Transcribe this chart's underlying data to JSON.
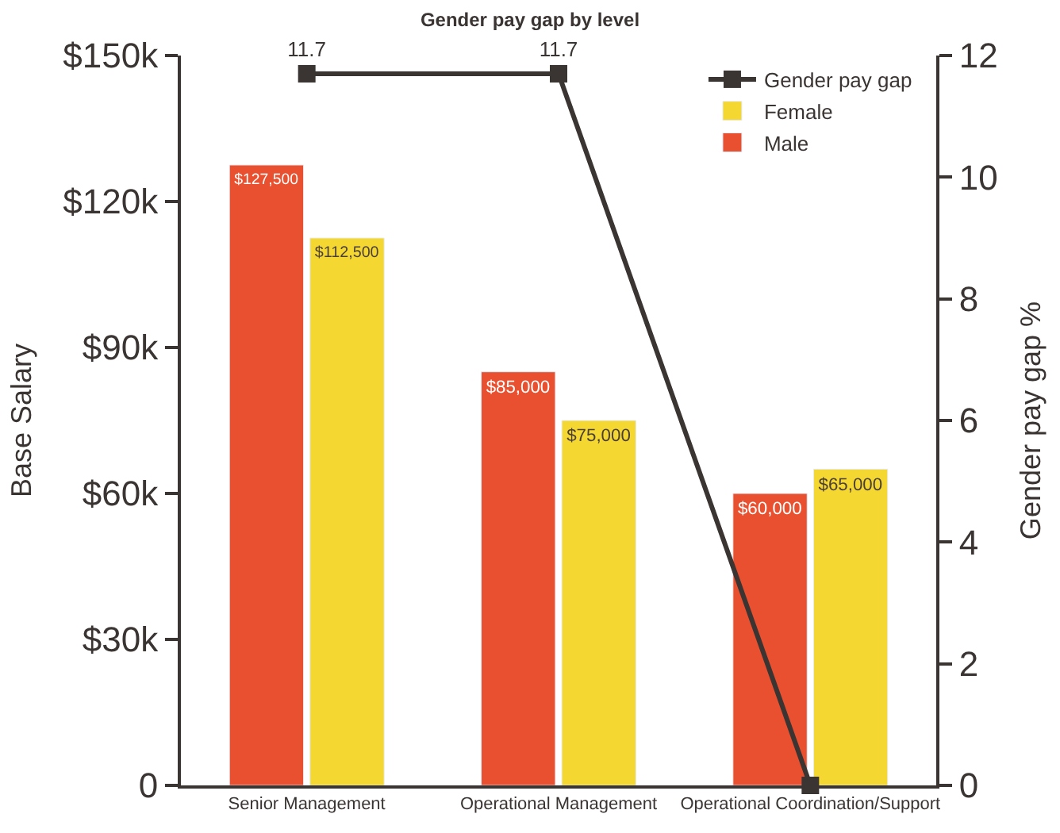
{
  "chart_data": {
    "type": "bar",
    "title": "Gender pay gap by level",
    "ylabel": "Base Salary",
    "y2label": "Gender pay gap %",
    "categories": [
      "Senior Management",
      "Operational Management",
      "Operational Coordination/Support"
    ],
    "series": [
      {
        "name": "Male",
        "color": "#e9502f",
        "values": [
          127500,
          85000,
          60000
        ],
        "value_labels": [
          "$127,500",
          "$85,000",
          "$60,000"
        ]
      },
      {
        "name": "Female",
        "color": "#f5d731",
        "values": [
          112500,
          75000,
          65000
        ],
        "value_labels": [
          "$112,500",
          "$75,000",
          "$65,000"
        ]
      },
      {
        "name": "Gender pay gap",
        "type": "line",
        "axis": "y2",
        "color": "#3a3433",
        "marker": "square",
        "values": [
          11.7,
          11.7,
          0
        ],
        "value_labels": [
          "11.7",
          "11.7",
          null
        ]
      }
    ],
    "ylim": [
      0,
      150000
    ],
    "yticks": [
      {
        "value": 0,
        "label": "0"
      },
      {
        "value": 30000,
        "label": "$30k"
      },
      {
        "value": 60000,
        "label": "$60k"
      },
      {
        "value": 90000,
        "label": "$90k"
      },
      {
        "value": 120000,
        "label": "$120k"
      },
      {
        "value": 150000,
        "label": "$150k"
      }
    ],
    "y2lim": [
      0,
      12
    ],
    "y2ticks": [
      0,
      2,
      4,
      6,
      8,
      10,
      12
    ],
    "legend": "top right"
  }
}
